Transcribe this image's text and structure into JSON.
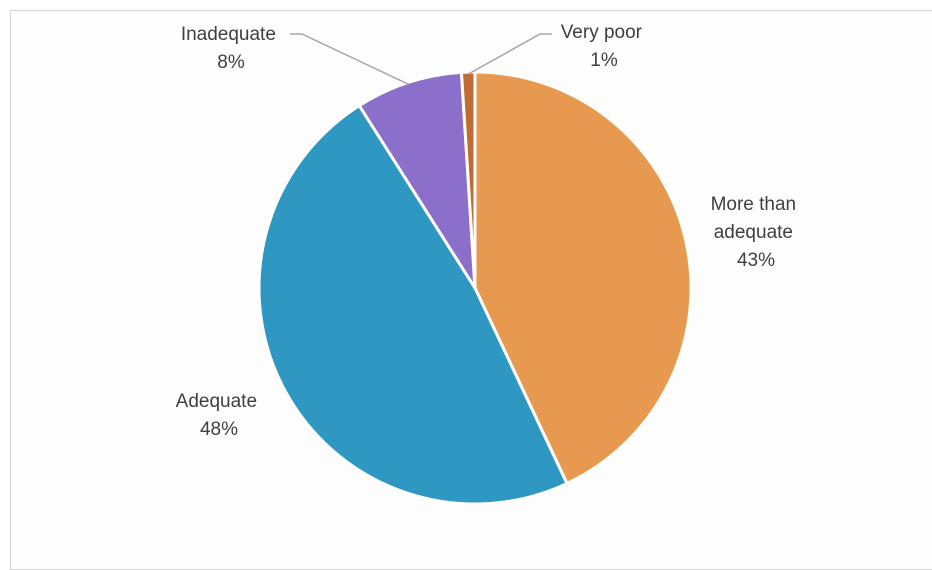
{
  "chart_data": {
    "type": "pie",
    "title": "",
    "slices": [
      {
        "label_lines": [
          "More than",
          "adequate"
        ],
        "pct_text": "43%",
        "value": 43,
        "color": "#e79a4f"
      },
      {
        "label_lines": [
          "Adequate"
        ],
        "pct_text": "48%",
        "value": 48,
        "color": "#2e97c2"
      },
      {
        "label_lines": [
          "Inadequate"
        ],
        "pct_text": "8%",
        "value": 8,
        "color": "#8c6fcb"
      },
      {
        "label_lines": [
          "Very poor"
        ],
        "pct_text": "1%",
        "value": 1,
        "color": "#bf6d35"
      }
    ]
  }
}
